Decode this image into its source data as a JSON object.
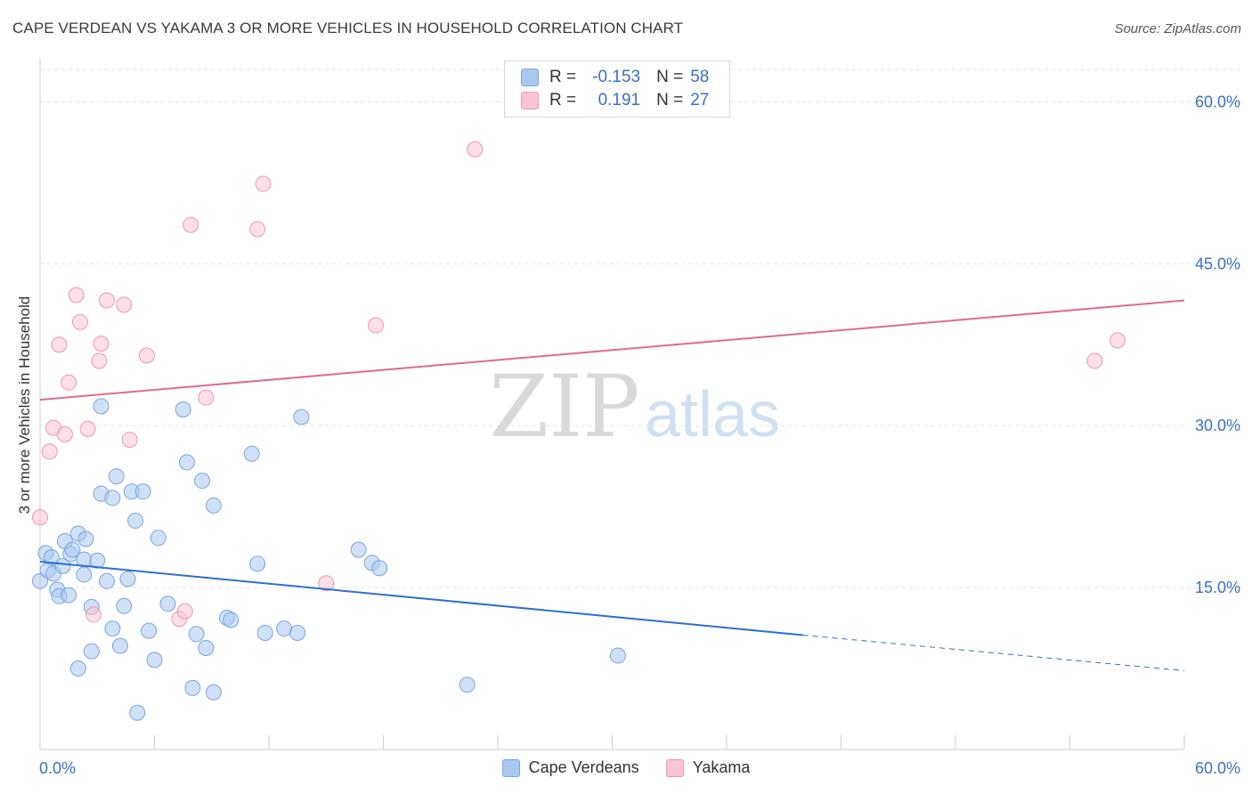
{
  "title": "CAPE VERDEAN VS YAKAMA 3 OR MORE VEHICLES IN HOUSEHOLD CORRELATION CHART",
  "source": "Source: ZipAtlas.com",
  "watermark": {
    "zip": "ZIP",
    "atlas": "atlas"
  },
  "legend": {
    "r_label": "R =",
    "n_label": "N =",
    "rows": [
      {
        "r": "-0.153",
        "n": "58",
        "color": "#a9c8f0",
        "border": "#7aa6df"
      },
      {
        "r": "0.191",
        "n": "27",
        "color": "#f9c4d3",
        "border": "#ee98b3"
      }
    ]
  },
  "chart_data": {
    "type": "scatter",
    "title": "CAPE VERDEAN VS YAKAMA 3 OR MORE VEHICLES IN HOUSEHOLD CORRELATION CHART",
    "xlabel": "",
    "ylabel": "3 or more Vehicles in Household",
    "xlim": [
      0,
      60
    ],
    "ylim": [
      0,
      63
    ],
    "x_tick_labels": [
      "0.0%",
      "60.0%"
    ],
    "y_ticks": [
      15,
      30,
      45,
      60
    ],
    "y_tick_labels": [
      "15.0%",
      "30.0%",
      "45.0%",
      "60.0%"
    ],
    "grid": true,
    "legend_position": "top-center",
    "series": [
      {
        "name": "Cape Verdeans",
        "color": "#a9c8f0",
        "stroke": "#7aa6df",
        "line_color": "#2d6fd1",
        "trend": {
          "x0": 0,
          "y0": 17.4,
          "x1": 40,
          "y1": 10.6,
          "dash_to_x": 60,
          "dash_to_y": 7.3
        },
        "points": [
          [
            0.0,
            15.6
          ],
          [
            0.3,
            18.2
          ],
          [
            0.4,
            16.6
          ],
          [
            0.6,
            17.8
          ],
          [
            0.7,
            16.3
          ],
          [
            0.9,
            14.8
          ],
          [
            1.0,
            14.2
          ],
          [
            1.2,
            17.0
          ],
          [
            1.3,
            19.3
          ],
          [
            1.5,
            14.3
          ],
          [
            1.6,
            18.1
          ],
          [
            1.7,
            18.5
          ],
          [
            2.0,
            7.5
          ],
          [
            2.0,
            20.0
          ],
          [
            2.3,
            17.6
          ],
          [
            2.3,
            16.2
          ],
          [
            2.4,
            19.5
          ],
          [
            2.7,
            9.1
          ],
          [
            2.7,
            13.2
          ],
          [
            3.0,
            17.5
          ],
          [
            3.2,
            23.7
          ],
          [
            3.2,
            31.8
          ],
          [
            3.5,
            15.6
          ],
          [
            3.8,
            23.3
          ],
          [
            3.8,
            11.2
          ],
          [
            4.0,
            25.3
          ],
          [
            4.2,
            9.6
          ],
          [
            4.4,
            13.3
          ],
          [
            4.6,
            15.8
          ],
          [
            4.8,
            23.9
          ],
          [
            5.0,
            21.2
          ],
          [
            5.1,
            3.4
          ],
          [
            5.4,
            23.9
          ],
          [
            5.7,
            11.0
          ],
          [
            6.0,
            8.3
          ],
          [
            6.2,
            19.6
          ],
          [
            6.7,
            13.5
          ],
          [
            7.5,
            31.5
          ],
          [
            7.7,
            26.6
          ],
          [
            8.0,
            5.7
          ],
          [
            8.2,
            10.7
          ],
          [
            8.5,
            24.9
          ],
          [
            8.7,
            9.4
          ],
          [
            9.1,
            22.6
          ],
          [
            9.1,
            5.3
          ],
          [
            9.8,
            12.2
          ],
          [
            10.0,
            12.0
          ],
          [
            11.1,
            27.4
          ],
          [
            11.4,
            17.2
          ],
          [
            11.8,
            10.8
          ],
          [
            12.8,
            11.2
          ],
          [
            13.5,
            10.8
          ],
          [
            13.7,
            30.8
          ],
          [
            16.7,
            18.5
          ],
          [
            17.4,
            17.3
          ],
          [
            17.8,
            16.8
          ],
          [
            22.4,
            6.0
          ],
          [
            30.3,
            8.7
          ]
        ]
      },
      {
        "name": "Yakama",
        "color": "#f9c4d3",
        "stroke": "#ee98b3",
        "line_color": "#e06a92",
        "trend": {
          "x0": 0,
          "y0": 32.4,
          "x1": 60,
          "y1": 41.6
        },
        "points": [
          [
            0.0,
            21.5
          ],
          [
            0.5,
            27.6
          ],
          [
            0.7,
            29.8
          ],
          [
            1.0,
            37.5
          ],
          [
            1.3,
            29.2
          ],
          [
            1.5,
            34.0
          ],
          [
            1.9,
            42.1
          ],
          [
            2.1,
            39.6
          ],
          [
            2.5,
            29.7
          ],
          [
            2.8,
            12.5
          ],
          [
            3.1,
            36.0
          ],
          [
            3.2,
            37.6
          ],
          [
            3.5,
            41.6
          ],
          [
            4.4,
            41.2
          ],
          [
            4.7,
            28.7
          ],
          [
            5.6,
            36.5
          ],
          [
            7.3,
            12.1
          ],
          [
            7.6,
            12.8
          ],
          [
            7.9,
            48.6
          ],
          [
            8.7,
            32.6
          ],
          [
            11.4,
            48.2
          ],
          [
            11.7,
            52.4
          ],
          [
            15.0,
            15.4
          ],
          [
            17.6,
            39.3
          ],
          [
            22.8,
            55.6
          ],
          [
            55.3,
            36.0
          ],
          [
            56.5,
            37.9
          ]
        ]
      }
    ]
  },
  "bottom_legend": [
    "Cape Verdeans",
    "Yakama"
  ]
}
